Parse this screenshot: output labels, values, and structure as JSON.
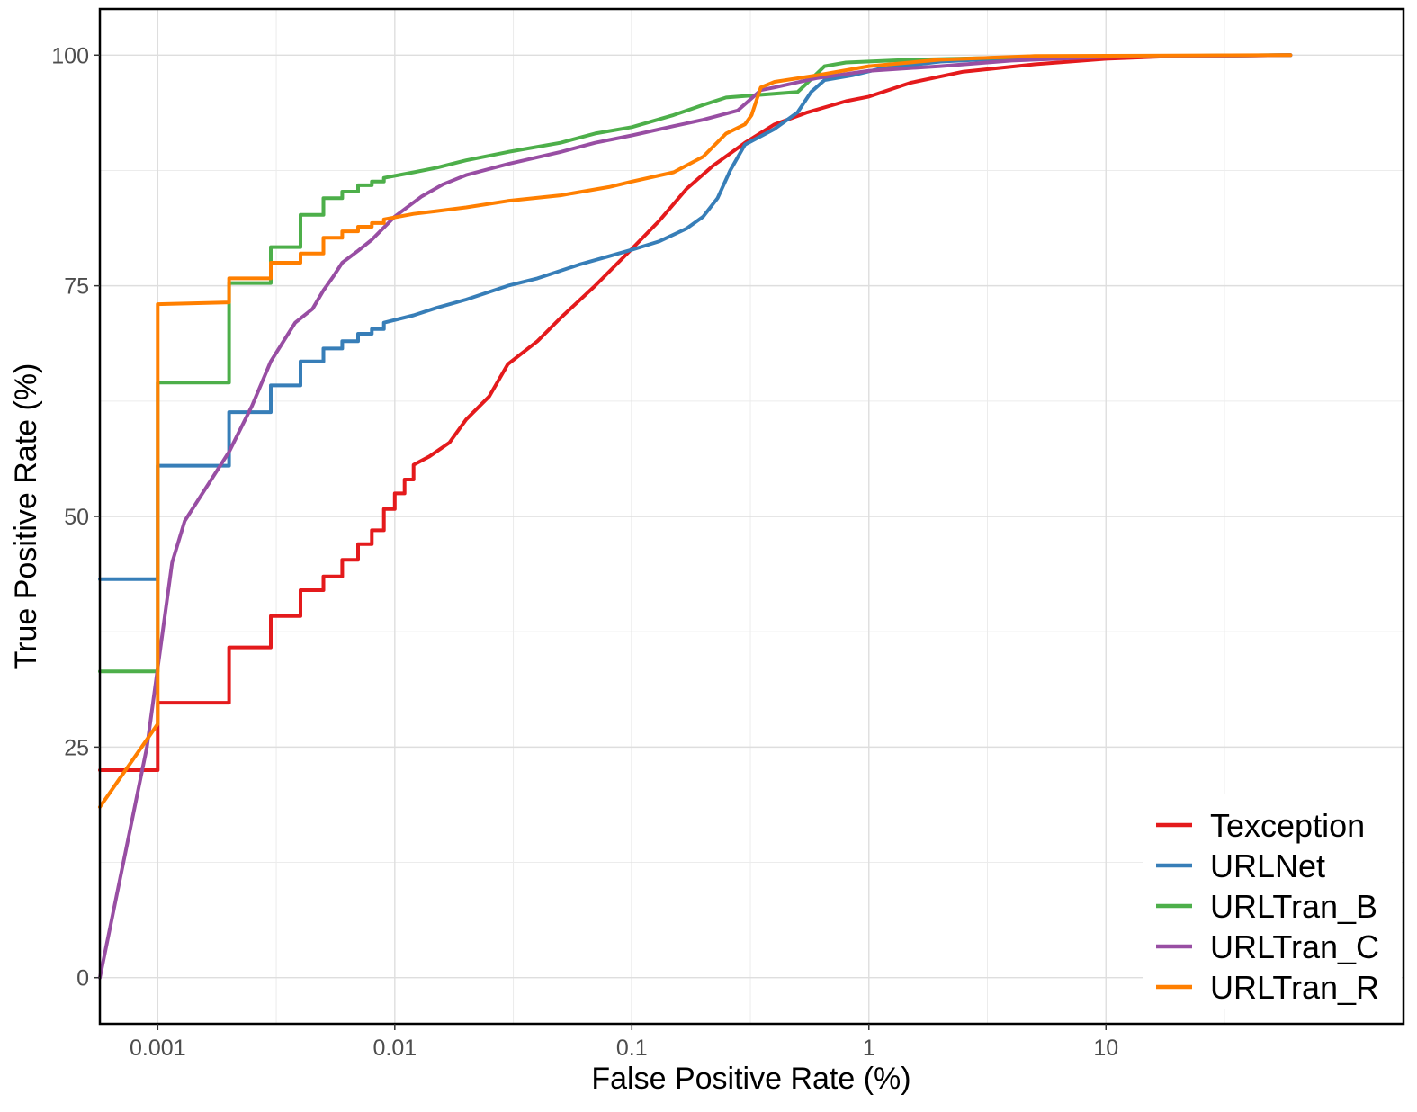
{
  "chart_data": {
    "type": "line",
    "title": "",
    "xlabel": "False Positive Rate (%)",
    "ylabel": "True Positive Rate (%)",
    "x_scale": "log10",
    "xlim": [
      0.00057,
      180
    ],
    "ylim": [
      -5,
      105
    ],
    "x_ticks": [
      0.001,
      0.01,
      0.1,
      1,
      10
    ],
    "x_tick_labels": [
      "0.001",
      "0.01",
      "0.1",
      "1",
      "10"
    ],
    "y_ticks": [
      0,
      25,
      50,
      75,
      100
    ],
    "y_tick_labels": [
      "0",
      "25",
      "50",
      "75",
      "100"
    ],
    "grid": true,
    "legend_position": "bottom-right",
    "series": [
      {
        "name": "Texception",
        "color": "#E41A1C",
        "points": [
          [
            0.00057,
            22.5
          ],
          [
            0.001,
            22.5
          ],
          [
            0.001,
            29.8
          ],
          [
            0.002,
            29.8
          ],
          [
            0.002,
            35.8
          ],
          [
            0.003,
            35.8
          ],
          [
            0.003,
            39.2
          ],
          [
            0.004,
            39.2
          ],
          [
            0.004,
            42
          ],
          [
            0.005,
            42
          ],
          [
            0.005,
            43.5
          ],
          [
            0.006,
            43.5
          ],
          [
            0.006,
            45.3
          ],
          [
            0.007,
            45.3
          ],
          [
            0.007,
            47
          ],
          [
            0.008,
            47
          ],
          [
            0.008,
            48.5
          ],
          [
            0.009,
            48.5
          ],
          [
            0.009,
            50.8
          ],
          [
            0.01,
            50.8
          ],
          [
            0.01,
            52.5
          ],
          [
            0.011,
            52.5
          ],
          [
            0.011,
            54
          ],
          [
            0.012,
            54
          ],
          [
            0.012,
            55.6
          ],
          [
            0.014,
            56.5
          ],
          [
            0.017,
            58
          ],
          [
            0.02,
            60.5
          ],
          [
            0.025,
            63
          ],
          [
            0.03,
            66.5
          ],
          [
            0.04,
            69
          ],
          [
            0.05,
            71.5
          ],
          [
            0.07,
            75
          ],
          [
            0.1,
            79
          ],
          [
            0.13,
            82
          ],
          [
            0.17,
            85.5
          ],
          [
            0.22,
            88
          ],
          [
            0.3,
            90.5
          ],
          [
            0.4,
            92.5
          ],
          [
            0.55,
            93.8
          ],
          [
            0.8,
            95
          ],
          [
            1,
            95.5
          ],
          [
            1.5,
            97
          ],
          [
            2.5,
            98.2
          ],
          [
            5,
            99
          ],
          [
            10,
            99.6
          ],
          [
            20,
            99.9
          ],
          [
            60,
            100
          ]
        ]
      },
      {
        "name": "URLNet",
        "color": "#377EB8",
        "points": [
          [
            0.00057,
            43.2
          ],
          [
            0.001,
            43.2
          ],
          [
            0.001,
            55.5
          ],
          [
            0.002,
            55.5
          ],
          [
            0.002,
            61.3
          ],
          [
            0.003,
            61.3
          ],
          [
            0.003,
            64.2
          ],
          [
            0.004,
            64.2
          ],
          [
            0.004,
            66.8
          ],
          [
            0.005,
            66.8
          ],
          [
            0.005,
            68.2
          ],
          [
            0.006,
            68.2
          ],
          [
            0.006,
            69
          ],
          [
            0.007,
            69
          ],
          [
            0.007,
            69.8
          ],
          [
            0.008,
            69.8
          ],
          [
            0.008,
            70.3
          ],
          [
            0.009,
            70.3
          ],
          [
            0.009,
            71
          ],
          [
            0.012,
            71.8
          ],
          [
            0.015,
            72.6
          ],
          [
            0.02,
            73.5
          ],
          [
            0.03,
            75
          ],
          [
            0.04,
            75.8
          ],
          [
            0.06,
            77.3
          ],
          [
            0.08,
            78.2
          ],
          [
            0.1,
            78.9
          ],
          [
            0.13,
            79.8
          ],
          [
            0.17,
            81.2
          ],
          [
            0.2,
            82.5
          ],
          [
            0.23,
            84.5
          ],
          [
            0.26,
            87.5
          ],
          [
            0.3,
            90.3
          ],
          [
            0.4,
            92
          ],
          [
            0.5,
            93.8
          ],
          [
            0.57,
            96
          ],
          [
            0.65,
            97.3
          ],
          [
            0.85,
            97.8
          ],
          [
            1.1,
            98.5
          ],
          [
            2,
            99.3
          ],
          [
            5,
            99.8
          ],
          [
            60,
            100
          ]
        ]
      },
      {
        "name": "URLTran_B",
        "color": "#4DAF4A",
        "points": [
          [
            0.00057,
            33.2
          ],
          [
            0.001,
            33.2
          ],
          [
            0.001,
            64.5
          ],
          [
            0.002,
            64.5
          ],
          [
            0.002,
            75.3
          ],
          [
            0.003,
            75.3
          ],
          [
            0.003,
            79.2
          ],
          [
            0.004,
            79.2
          ],
          [
            0.004,
            82.7
          ],
          [
            0.005,
            82.7
          ],
          [
            0.005,
            84.5
          ],
          [
            0.006,
            84.5
          ],
          [
            0.006,
            85.2
          ],
          [
            0.007,
            85.2
          ],
          [
            0.007,
            85.9
          ],
          [
            0.008,
            85.9
          ],
          [
            0.008,
            86.3
          ],
          [
            0.009,
            86.3
          ],
          [
            0.009,
            86.7
          ],
          [
            0.012,
            87.3
          ],
          [
            0.015,
            87.8
          ],
          [
            0.02,
            88.6
          ],
          [
            0.03,
            89.5
          ],
          [
            0.05,
            90.5
          ],
          [
            0.07,
            91.5
          ],
          [
            0.1,
            92.2
          ],
          [
            0.15,
            93.5
          ],
          [
            0.2,
            94.6
          ],
          [
            0.25,
            95.4
          ],
          [
            0.35,
            95.7
          ],
          [
            0.5,
            96
          ],
          [
            0.55,
            97
          ],
          [
            0.65,
            98.8
          ],
          [
            0.8,
            99.2
          ],
          [
            1.5,
            99.5
          ],
          [
            5,
            99.8
          ],
          [
            60,
            100
          ]
        ]
      },
      {
        "name": "URLTran_C",
        "color": "#984EA3",
        "points": [
          [
            0.00057,
            0
          ],
          [
            0.0009,
            25
          ],
          [
            0.00115,
            45
          ],
          [
            0.0013,
            49.5
          ],
          [
            0.002,
            57
          ],
          [
            0.0025,
            62
          ],
          [
            0.003,
            66.8
          ],
          [
            0.0038,
            71
          ],
          [
            0.0045,
            72.5
          ],
          [
            0.005,
            74.5
          ],
          [
            0.0055,
            76
          ],
          [
            0.006,
            77.5
          ],
          [
            0.007,
            78.8
          ],
          [
            0.008,
            80
          ],
          [
            0.01,
            82.5
          ],
          [
            0.013,
            84.7
          ],
          [
            0.016,
            86
          ],
          [
            0.02,
            87
          ],
          [
            0.03,
            88.2
          ],
          [
            0.05,
            89.5
          ],
          [
            0.07,
            90.5
          ],
          [
            0.1,
            91.3
          ],
          [
            0.15,
            92.3
          ],
          [
            0.2,
            93
          ],
          [
            0.28,
            94
          ],
          [
            0.31,
            95
          ],
          [
            0.35,
            96.2
          ],
          [
            0.4,
            96.5
          ],
          [
            0.6,
            97.5
          ],
          [
            1,
            98.3
          ],
          [
            2,
            98.8
          ],
          [
            4,
            99.4
          ],
          [
            10,
            99.8
          ],
          [
            60,
            100
          ]
        ]
      },
      {
        "name": "URLTran_R",
        "color": "#FF7F00",
        "points": [
          [
            0.00057,
            18.5
          ],
          [
            0.001,
            27.5
          ],
          [
            0.001,
            73
          ],
          [
            0.002,
            73.2
          ],
          [
            0.002,
            75.8
          ],
          [
            0.003,
            75.8
          ],
          [
            0.003,
            77.5
          ],
          [
            0.004,
            77.5
          ],
          [
            0.004,
            78.5
          ],
          [
            0.005,
            78.5
          ],
          [
            0.005,
            80.2
          ],
          [
            0.006,
            80.2
          ],
          [
            0.006,
            80.9
          ],
          [
            0.007,
            80.9
          ],
          [
            0.007,
            81.4
          ],
          [
            0.008,
            81.4
          ],
          [
            0.008,
            81.8
          ],
          [
            0.009,
            81.8
          ],
          [
            0.009,
            82.2
          ],
          [
            0.012,
            82.8
          ],
          [
            0.015,
            83.1
          ],
          [
            0.02,
            83.5
          ],
          [
            0.03,
            84.2
          ],
          [
            0.05,
            84.8
          ],
          [
            0.08,
            85.7
          ],
          [
            0.1,
            86.3
          ],
          [
            0.15,
            87.3
          ],
          [
            0.2,
            89
          ],
          [
            0.25,
            91.5
          ],
          [
            0.3,
            92.5
          ],
          [
            0.32,
            93.5
          ],
          [
            0.35,
            96.5
          ],
          [
            0.4,
            97.1
          ],
          [
            0.6,
            97.8
          ],
          [
            1,
            98.8
          ],
          [
            2,
            99.5
          ],
          [
            5,
            99.9
          ],
          [
            60,
            100
          ]
        ]
      }
    ]
  }
}
